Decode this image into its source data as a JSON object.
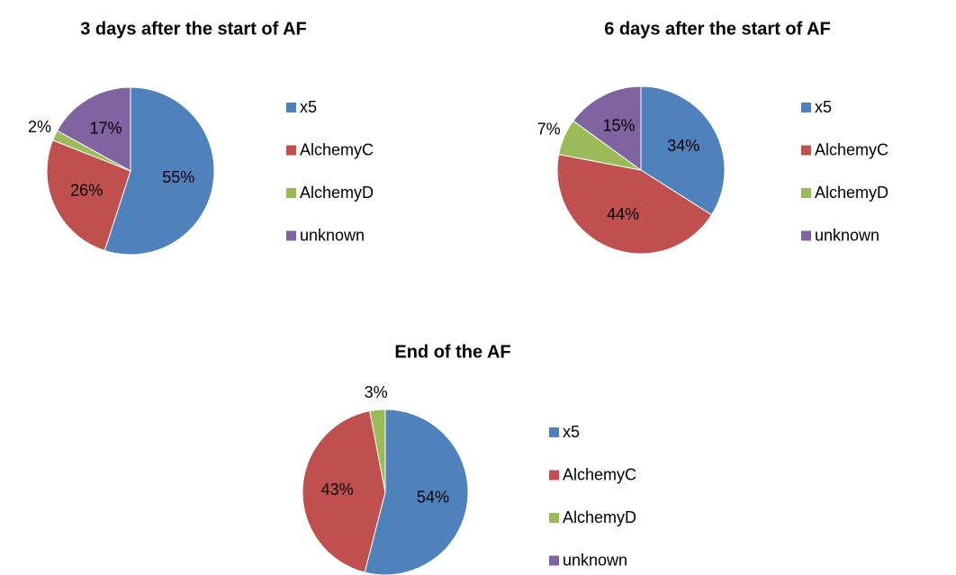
{
  "chart_data": [
    {
      "type": "pie",
      "title": "3 days after the start of AF",
      "categories": [
        "x5",
        "AlchemyC",
        "AlchemyD",
        "unknown"
      ],
      "values": [
        55,
        26,
        2,
        17
      ],
      "value_labels": [
        "55%",
        "26%",
        "2%",
        "17%"
      ],
      "colors": [
        "#4f81bd",
        "#c0504d",
        "#9bbb59",
        "#8064a2"
      ]
    },
    {
      "type": "pie",
      "title": "6 days after the start of AF",
      "categories": [
        "x5",
        "AlchemyC",
        "AlchemyD",
        "unknown"
      ],
      "values": [
        34,
        44,
        7,
        15
      ],
      "value_labels": [
        "34%",
        "44%",
        "7%",
        "15%"
      ],
      "colors": [
        "#4f81bd",
        "#c0504d",
        "#9bbb59",
        "#8064a2"
      ]
    },
    {
      "type": "pie",
      "title": "End of the AF",
      "categories": [
        "x5",
        "AlchemyC",
        "AlchemyD",
        "unknown"
      ],
      "values": [
        54,
        43,
        3,
        0
      ],
      "value_labels": [
        "54%",
        "43%",
        "3%",
        null
      ],
      "colors": [
        "#4f81bd",
        "#c0504d",
        "#9bbb59",
        "#8064a2"
      ]
    }
  ]
}
